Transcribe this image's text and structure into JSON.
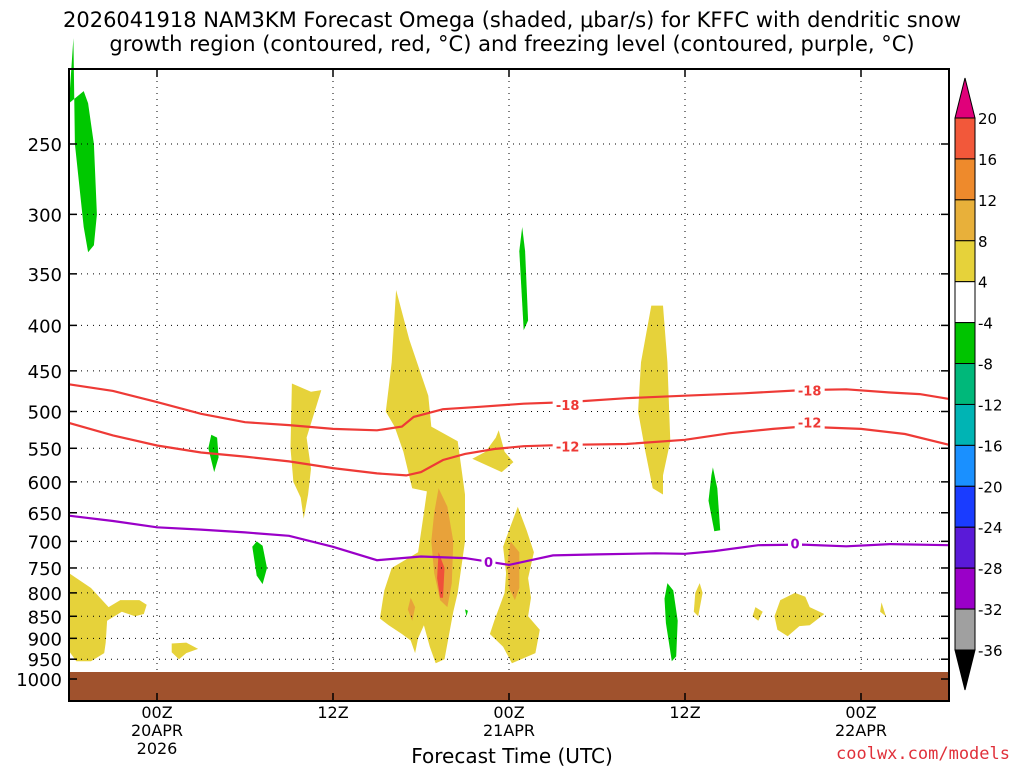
{
  "header": {
    "title_line1": "2026041918 NAM3KM Forecast Omega (shaded, μbar/s) for KFFC with dendritic snow",
    "title_line2": "growth region (contoured, red, °C) and freezing level (contoured, purple, °C)"
  },
  "footer": {
    "credit": "coolwx.com/models"
  },
  "chart_data": {
    "type": "heatmap",
    "title": "2026041918 NAM3KM Forecast Omega (shaded, μbar/s) for KFFC with dendritic snow growth region (contoured, red, °C) and freezing level (contoured, purple, °C)",
    "xlabel": "Forecast Time (UTC)",
    "ylabel": "",
    "x_unit": "forecast hours from 2026041918",
    "xlim": [
      0,
      60
    ],
    "y_unit": "hPa",
    "ylim": [
      1000,
      200
    ],
    "y_ticks": [
      250,
      300,
      350,
      400,
      450,
      500,
      550,
      600,
      650,
      700,
      750,
      800,
      850,
      900,
      950,
      1000
    ],
    "x_ticks": [
      {
        "hour": 6,
        "label": "00Z",
        "date": "20APR",
        "year": "2026"
      },
      {
        "hour": 18,
        "label": "12Z",
        "date": "",
        "year": ""
      },
      {
        "hour": 30,
        "label": "00Z",
        "date": "21APR",
        "year": ""
      },
      {
        "hour": 42,
        "label": "12Z",
        "date": "",
        "year": ""
      },
      {
        "hour": 54,
        "label": "00Z",
        "date": "22APR",
        "year": ""
      }
    ],
    "grid": true,
    "colorbar": {
      "labels": [
        20,
        16,
        12,
        8,
        4,
        -4,
        -8,
        -12,
        -16,
        -20,
        -24,
        -28,
        -32,
        -36
      ],
      "colors": [
        "#ff3b3b",
        "#f2583a",
        "#ee8a2c",
        "#e8b03a",
        "#e6d23a",
        "#ffffff",
        "#00c400",
        "#00b87a",
        "#00b4b4",
        "#1a90ff",
        "#1a3cff",
        "#5a1ad8",
        "#9a00c8",
        "#a0a0a0"
      ],
      "top_color": "#e0007a",
      "bottom_color": "#000000"
    },
    "series": [
      {
        "name": "-18",
        "color": "#ee3a36",
        "label": "-18",
        "label_points": [
          [
            34,
            493
          ],
          [
            50.5,
            475
          ]
        ],
        "points": [
          [
            0,
            466
          ],
          [
            3,
            474
          ],
          [
            6,
            488
          ],
          [
            9,
            503
          ],
          [
            12,
            514
          ],
          [
            15,
            518
          ],
          [
            18,
            523
          ],
          [
            21,
            525
          ],
          [
            22.7,
            520
          ],
          [
            23.5,
            507
          ],
          [
            25.5,
            497
          ],
          [
            28,
            494
          ],
          [
            31,
            490
          ],
          [
            34,
            488
          ],
          [
            38,
            483
          ],
          [
            42,
            480
          ],
          [
            46,
            477
          ],
          [
            50,
            473
          ],
          [
            53,
            472
          ],
          [
            56,
            476
          ],
          [
            58,
            478
          ],
          [
            60,
            484
          ]
        ]
      },
      {
        "name": "-12",
        "color": "#ee3a36",
        "label": "-12",
        "label_points": [
          [
            34,
            549
          ],
          [
            50.5,
            516
          ]
        ],
        "points": [
          [
            0,
            515
          ],
          [
            3,
            532
          ],
          [
            6,
            546
          ],
          [
            9,
            556
          ],
          [
            12,
            562
          ],
          [
            15,
            569
          ],
          [
            18,
            579
          ],
          [
            21,
            587
          ],
          [
            23,
            590
          ],
          [
            24,
            585
          ],
          [
            25.5,
            567
          ],
          [
            27,
            558
          ],
          [
            29,
            551
          ],
          [
            31,
            547
          ],
          [
            34,
            545
          ],
          [
            38,
            544
          ],
          [
            42,
            538
          ],
          [
            45,
            529
          ],
          [
            48,
            523
          ],
          [
            50,
            520
          ],
          [
            54,
            523
          ],
          [
            57,
            530
          ],
          [
            60,
            545
          ]
        ]
      },
      {
        "name": "0",
        "color": "#9a00c8",
        "label": "0",
        "label_points": [
          [
            28.6,
            740
          ],
          [
            49.5,
            706
          ]
        ],
        "points": [
          [
            0,
            655
          ],
          [
            3,
            664
          ],
          [
            6,
            675
          ],
          [
            9,
            679
          ],
          [
            12,
            684
          ],
          [
            15,
            690
          ],
          [
            18,
            710
          ],
          [
            21,
            735
          ],
          [
            24,
            728
          ],
          [
            27,
            731
          ],
          [
            30,
            744
          ],
          [
            33,
            726
          ],
          [
            36,
            724
          ],
          [
            40,
            722
          ],
          [
            42,
            723
          ],
          [
            44,
            718
          ],
          [
            47,
            707
          ],
          [
            50,
            706
          ],
          [
            53,
            709
          ],
          [
            56,
            705
          ],
          [
            60,
            707
          ]
        ]
      }
    ],
    "regions": [
      {
        "value": -6,
        "points": [
          [
            0,
            225
          ],
          [
            0.3,
            190
          ],
          [
            0.4,
            250
          ],
          [
            1,
            310
          ],
          [
            1.3,
            331
          ],
          [
            1.7,
            325
          ],
          [
            1.9,
            300
          ],
          [
            1.7,
            250
          ],
          [
            1.3,
            225
          ],
          [
            1,
            218
          ]
        ]
      },
      {
        "value": -6,
        "points": [
          [
            9.7,
            531
          ],
          [
            9.5,
            550
          ],
          [
            9.9,
            585
          ],
          [
            10.2,
            563
          ],
          [
            10.1,
            535
          ]
        ]
      },
      {
        "value": -6,
        "points": [
          [
            12.5,
            710
          ],
          [
            12.8,
            765
          ],
          [
            13.2,
            782
          ],
          [
            13.5,
            750
          ],
          [
            13.2,
            708
          ],
          [
            12.8,
            700
          ]
        ]
      },
      {
        "value": -6,
        "points": [
          [
            30.7,
            330
          ],
          [
            31,
            405
          ],
          [
            31.3,
            395
          ],
          [
            31.1,
            330
          ],
          [
            30.9,
            310
          ]
        ]
      },
      {
        "value": -6,
        "points": [
          [
            40.6,
            812
          ],
          [
            40.7,
            865
          ],
          [
            41.1,
            955
          ],
          [
            41.4,
            943
          ],
          [
            41.5,
            860
          ],
          [
            41.2,
            795
          ],
          [
            40.8,
            780
          ]
        ]
      },
      {
        "value": -6,
        "points": [
          [
            43.8,
            590
          ],
          [
            43.6,
            630
          ],
          [
            44,
            682
          ],
          [
            44.4,
            680
          ],
          [
            44.2,
            610
          ],
          [
            43.9,
            578
          ]
        ]
      },
      {
        "value": -6,
        "points": [
          [
            27,
            835
          ],
          [
            27.1,
            850
          ],
          [
            27.2,
            838
          ]
        ]
      },
      {
        "value": 5,
        "points": [
          [
            0,
            760
          ],
          [
            1.5,
            790
          ],
          [
            2.7,
            830
          ],
          [
            3.5,
            815
          ],
          [
            4.8,
            815
          ],
          [
            5.3,
            825
          ],
          [
            5.1,
            845
          ],
          [
            4.5,
            850
          ],
          [
            3.6,
            840
          ],
          [
            2.6,
            860
          ],
          [
            2.5,
            910
          ],
          [
            2.4,
            935
          ],
          [
            1.5,
            955
          ],
          [
            0.5,
            955
          ],
          [
            0,
            930
          ]
        ]
      },
      {
        "value": 5,
        "points": [
          [
            7,
            912
          ],
          [
            8,
            910
          ],
          [
            8.8,
            925
          ],
          [
            8,
            935
          ],
          [
            7.5,
            950
          ],
          [
            7,
            933
          ],
          [
            7,
            922
          ]
        ]
      },
      {
        "value": 5,
        "points": [
          [
            15.2,
            465
          ],
          [
            16.5,
            475
          ],
          [
            17.2,
            473
          ],
          [
            16.2,
            535
          ],
          [
            16.5,
            580
          ],
          [
            16.3,
            620
          ],
          [
            16,
            660
          ],
          [
            15.8,
            625
          ],
          [
            15.3,
            600
          ],
          [
            15.1,
            550
          ]
        ]
      },
      {
        "value": 5,
        "points": [
          [
            22.3,
            365
          ],
          [
            23.2,
            415
          ],
          [
            24.5,
            480
          ],
          [
            24.7,
            520
          ],
          [
            26.5,
            540
          ],
          [
            27,
            620
          ],
          [
            27,
            700
          ],
          [
            26.5,
            800
          ],
          [
            26.2,
            840
          ],
          [
            25.6,
            950
          ],
          [
            25,
            960
          ],
          [
            24.6,
            920
          ],
          [
            24.2,
            870
          ],
          [
            23.8,
            900
          ],
          [
            23.6,
            935
          ],
          [
            23.3,
            905
          ],
          [
            22.7,
            890
          ],
          [
            21.8,
            870
          ],
          [
            21.2,
            855
          ],
          [
            21.5,
            795
          ],
          [
            22,
            750
          ],
          [
            23.8,
            720
          ],
          [
            24.2,
            650
          ],
          [
            24.4,
            615
          ],
          [
            23.4,
            610
          ],
          [
            22.8,
            555
          ],
          [
            22.2,
            520
          ],
          [
            21.6,
            500
          ],
          [
            21.8,
            470
          ],
          [
            22,
            440
          ]
        ]
      },
      {
        "value": 5,
        "points": [
          [
            27.5,
            565
          ],
          [
            29,
            580
          ],
          [
            29.5,
            585
          ],
          [
            30.3,
            570
          ],
          [
            29.7,
            555
          ],
          [
            29.3,
            525
          ],
          [
            29.1,
            535
          ],
          [
            28.4,
            555
          ]
        ]
      },
      {
        "value": 5,
        "points": [
          [
            29.6,
            710
          ],
          [
            30,
            680
          ],
          [
            30.6,
            640
          ],
          [
            31.2,
            680
          ],
          [
            31.7,
            720
          ],
          [
            31.3,
            770
          ],
          [
            31.5,
            810
          ],
          [
            31.3,
            850
          ],
          [
            32.1,
            880
          ],
          [
            31.8,
            935
          ],
          [
            30.2,
            960
          ],
          [
            29.6,
            920
          ],
          [
            28.7,
            890
          ],
          [
            29,
            860
          ],
          [
            29.7,
            800
          ],
          [
            29.8,
            760
          ]
        ]
      },
      {
        "value": 5,
        "points": [
          [
            39,
            440
          ],
          [
            39.7,
            380
          ],
          [
            40.5,
            380
          ],
          [
            40.8,
            440
          ],
          [
            41,
            540
          ],
          [
            40.5,
            590
          ],
          [
            40.5,
            620
          ],
          [
            39.8,
            610
          ],
          [
            39.3,
            555
          ],
          [
            38.8,
            500
          ]
        ]
      },
      {
        "value": 5,
        "points": [
          [
            43,
            780
          ],
          [
            43.2,
            800
          ],
          [
            42.9,
            850
          ],
          [
            42.6,
            840
          ],
          [
            42.7,
            800
          ]
        ]
      },
      {
        "value": 5,
        "points": [
          [
            46.8,
            830
          ],
          [
            47.3,
            840
          ],
          [
            47,
            860
          ],
          [
            46.6,
            850
          ]
        ]
      },
      {
        "value": 5,
        "points": [
          [
            48.5,
            815
          ],
          [
            49.5,
            800
          ],
          [
            50.2,
            808
          ],
          [
            50.5,
            830
          ],
          [
            51.5,
            845
          ],
          [
            50.5,
            870
          ],
          [
            49.8,
            872
          ],
          [
            49,
            895
          ],
          [
            48.3,
            880
          ],
          [
            48.1,
            850
          ]
        ]
      },
      {
        "value": 5,
        "points": [
          [
            55.4,
            820
          ],
          [
            55.6,
            840
          ],
          [
            55.7,
            850
          ],
          [
            55.3,
            840
          ]
        ]
      },
      {
        "value": 10,
        "points": [
          [
            25.2,
            610
          ],
          [
            25.8,
            640
          ],
          [
            26.2,
            700
          ],
          [
            26.1,
            780
          ],
          [
            25.8,
            830
          ],
          [
            25.3,
            815
          ],
          [
            24.9,
            760
          ],
          [
            24.7,
            700
          ],
          [
            24.9,
            650
          ]
        ]
      },
      {
        "value": 10,
        "points": [
          [
            30.1,
            700
          ],
          [
            30.7,
            720
          ],
          [
            30.7,
            790
          ],
          [
            30.4,
            815
          ],
          [
            30,
            790
          ],
          [
            29.9,
            740
          ]
        ]
      },
      {
        "value": 10,
        "points": [
          [
            23.3,
            810
          ],
          [
            23.6,
            830
          ],
          [
            23.4,
            860
          ],
          [
            23.1,
            835
          ]
        ]
      },
      {
        "value": 18,
        "points": [
          [
            25.2,
            720
          ],
          [
            25.6,
            750
          ],
          [
            25.5,
            810
          ],
          [
            25.3,
            810
          ],
          [
            25.1,
            770
          ]
        ]
      }
    ],
    "ground": {
      "color": "#a0522d",
      "level_hPa": 1000
    }
  }
}
